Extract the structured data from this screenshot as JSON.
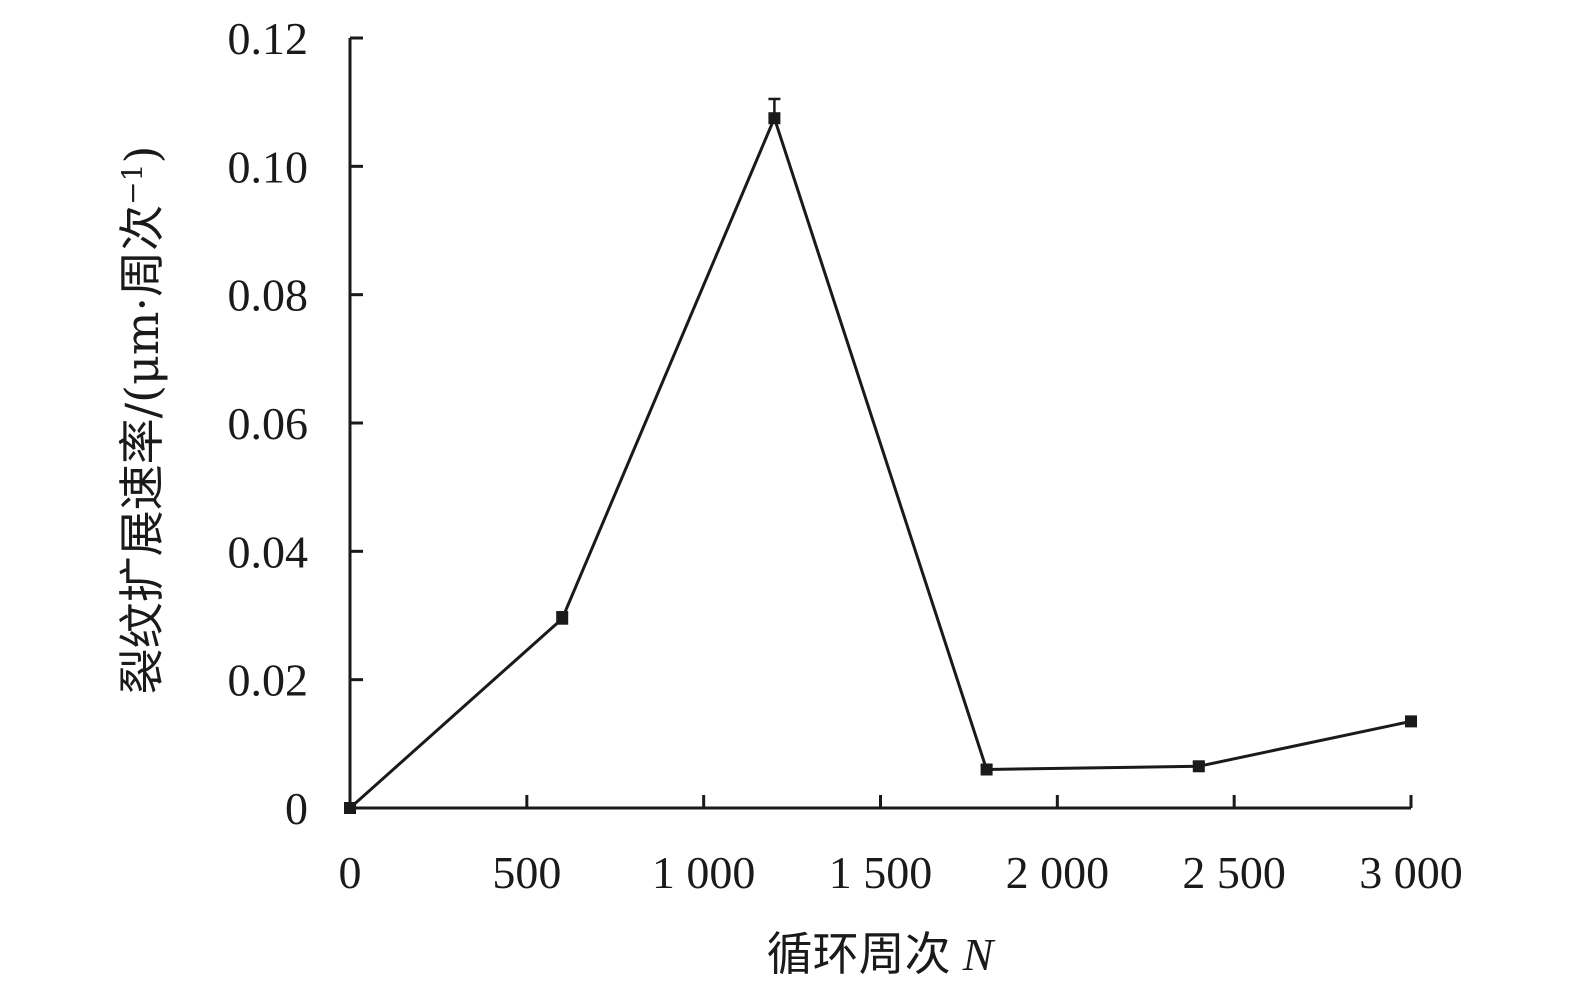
{
  "chart_data": {
    "type": "line",
    "title": "",
    "xlabel": "循环周次",
    "xlabel_var": "N",
    "ylabel_main": "裂纹扩展速率/(μm·周次",
    "ylabel_sup": "−1",
    "ylabel_close": ")",
    "xlim": [
      0,
      3000
    ],
    "ylim": [
      0,
      0.12
    ],
    "x_ticks": [
      0,
      500,
      1000,
      1500,
      2000,
      2500,
      3000
    ],
    "x_tick_labels": [
      "0",
      "500",
      "1 000",
      "1 500",
      "2 000",
      "2 500",
      "3 000"
    ],
    "y_ticks": [
      0,
      0.02,
      0.04,
      0.06,
      0.08,
      0.1,
      0.12
    ],
    "y_tick_labels": [
      "0",
      "0.02",
      "0.04",
      "0.06",
      "0.08",
      "0.10",
      "0.12"
    ],
    "grid": false,
    "legend": "none",
    "series": [
      {
        "x": [
          0,
          600,
          1200,
          1800,
          2400,
          3000
        ],
        "y": [
          0.0,
          0.0295,
          0.1075,
          0.006,
          0.0065,
          0.0135
        ],
        "err": [
          0.0,
          0.001,
          0.003,
          0.0006,
          0.0006,
          0.0006
        ]
      }
    ],
    "colors": {
      "line": "#1a1a1a"
    }
  }
}
